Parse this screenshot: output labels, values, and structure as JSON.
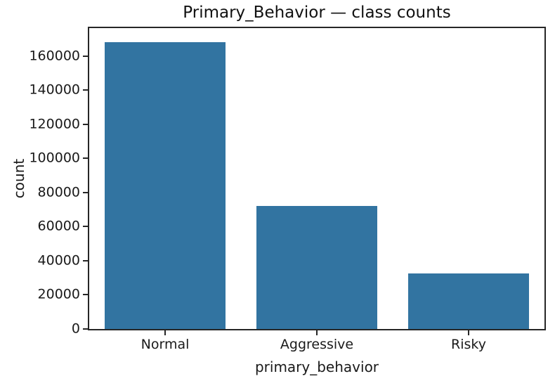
{
  "chart_data": {
    "type": "bar",
    "title": "Primary_Behavior — class counts",
    "xlabel": "primary_behavior",
    "ylabel": "count",
    "categories": [
      "Normal",
      "Aggressive",
      "Risky"
    ],
    "values": [
      168000,
      72000,
      32500
    ],
    "yticks": [
      0,
      20000,
      40000,
      60000,
      80000,
      100000,
      120000,
      140000,
      160000
    ],
    "ylim": [
      0,
      176400
    ],
    "grid": false,
    "legend": null,
    "bar_color": "#3274a1",
    "bar_width_fraction": 0.8,
    "axis_color": "#262626",
    "background_color": "#ffffff"
  }
}
